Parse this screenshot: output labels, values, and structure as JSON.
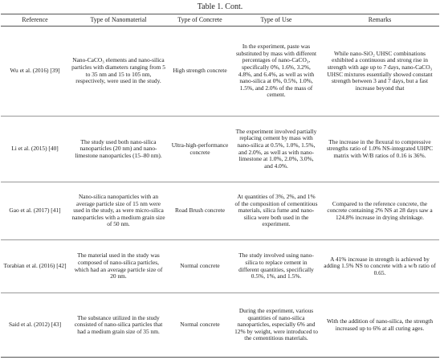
{
  "title": "Table 1. Cont.",
  "table": {
    "headers": [
      "Reference",
      "Type of Nanomaterial",
      "Type of Concrete",
      "Type of Use",
      "Remarks"
    ],
    "rows": [
      [
        "Wu et al. (2016) [39]",
        "Nano-CaCO₃ elements and nano-silica particles with diameters ranging from 5 to 35 nm and 15 to 105 nm, respectively, were used in the study.",
        "High strength concrete",
        "In the experiment, paste was substituted by mass with different percentages of nano-CaCO₃, specifically 0%, 1.6%, 3.2%, 4.8%, and 6.4%, as well as with nano-silica at 0%, 0.5%, 1.0%, 1.5%, and 2.0% of the mass of cement.",
        "While nano-SiO₂ UHSC combinations exhibited a continuous and strong rise in strength with age up to 7 days, nano-CaCO₃ UHSC mixtures essentially showed constant strength between 3 and 7 days, but a fast increase beyond that"
      ],
      [
        "Li et al. (2015) [40]",
        "The study used both nano-silica nanoparticles (20 nm) and nano-limestone nanoparticles (15–80 nm).",
        "Ultra-high-performance concrete",
        "The experiment involved partially replacing cement by mass with nano-silica at 0.5%, 1.0%, 1.5%, and 2.0%, as well as with nano-limestone at 1.0%, 2.0%, 3.0%, and 4.0%.",
        "The increase in the flexural to compressive strengths ratio of 1.0% NS-integrated UHPC matrix with W/B ratios of 0.16 is 36%."
      ],
      [
        "Gao et al. (2017) [41]",
        "Nano-silica nanoparticles with an average particle size of 15 nm were used in the study, as were micro-silica nanoparticles with a medium grain size of 50 nm.",
        "Road Brush concrete",
        "At quantities of 3%, 2%, and 1% of the composition of cementitious materials, silica fume and nano-silica were both used in the experiment.",
        "Compared to the reference concrete, the concrete containing 2% NS at 28 days saw a 124.8% increase in drying shrinkage."
      ],
      [
        "Torabian et al. (2016) [42]",
        "The material used in the study was composed of nano-silica particles, which had an average particle size of 20 nm.",
        "Normal concrete",
        "The study involved using nano-silica to replace cement in different quantities, specifically 0.5%, 1%, and 1.5%.",
        "A 41% increase in strength is achieved by adding 1.5% NS to concrete with a w/b ratio of 0.65."
      ],
      [
        "Said et al. (2012) [43]",
        "The substance utilized in the study consisted of nano-silica particles that had a medium grain size of 35 nm.",
        "Normal concrete",
        "During the experiment, various quantities of nano-silica nanoparticles, especially 6% and 12% by weight, were introduced to the cementitious materials.",
        "With the addition of nano-silica, the strength increased up to 6% at all curing ages."
      ]
    ]
  }
}
